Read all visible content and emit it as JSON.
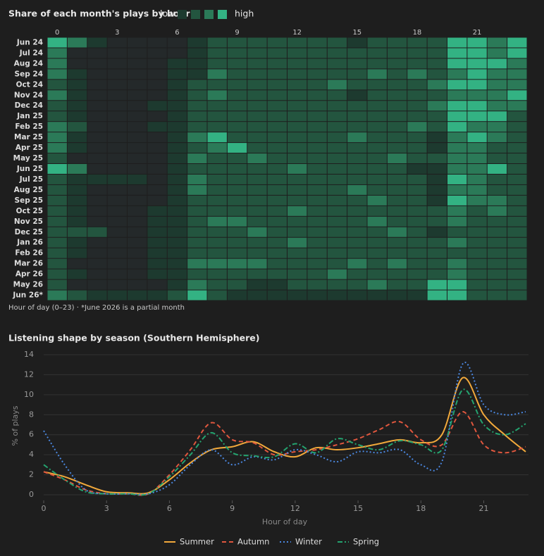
{
  "chart_data": [
    {
      "type": "heatmap",
      "title": "Share of each month's plays by hour",
      "legend_low": "low",
      "legend_high": "high",
      "note": "Hour of day (0–23) · *June 2026 is a partial month",
      "colors": [
        "#24292a",
        "#1d3a2f",
        "#23553f",
        "#2b7a58",
        "#33b283"
      ],
      "categories": [
        "Jun 24",
        "Jul 24",
        "Aug 24",
        "Sep 24",
        "Oct 24",
        "Nov 24",
        "Dec 24",
        "Jan 25",
        "Feb 25",
        "Mar 25",
        "Apr 25",
        "May 25",
        "Jun 25",
        "Jul 25",
        "Aug 25",
        "Sep 25",
        "Oct 25",
        "Nov 25",
        "Dec 25",
        "Jan 26",
        "Feb 26",
        "Mar 26",
        "Apr 26",
        "May 26",
        "Jun 26*"
      ],
      "x": [
        0,
        1,
        2,
        3,
        4,
        5,
        6,
        7,
        8,
        9,
        10,
        11,
        12,
        13,
        14,
        15,
        16,
        17,
        18,
        19,
        20,
        21,
        22,
        23
      ],
      "xlim": [
        0,
        23
      ],
      "xticks": [
        0,
        3,
        6,
        9,
        12,
        15,
        18,
        21
      ],
      "values": [
        [
          4,
          3,
          1,
          0,
          0,
          0,
          0,
          1,
          2,
          2,
          2,
          2,
          2,
          2,
          2,
          1,
          2,
          2,
          2,
          2,
          4,
          4,
          3,
          4
        ],
        [
          3,
          0,
          0,
          0,
          0,
          0,
          0,
          1,
          2,
          2,
          2,
          2,
          2,
          2,
          2,
          2,
          2,
          2,
          2,
          2,
          4,
          4,
          3,
          4
        ],
        [
          3,
          0,
          0,
          0,
          0,
          0,
          1,
          1,
          2,
          2,
          2,
          2,
          2,
          2,
          2,
          2,
          2,
          2,
          2,
          2,
          4,
          4,
          4,
          3
        ],
        [
          3,
          1,
          0,
          0,
          0,
          0,
          1,
          1,
          3,
          2,
          2,
          2,
          2,
          2,
          2,
          2,
          3,
          2,
          3,
          2,
          3,
          4,
          3,
          3
        ],
        [
          2,
          1,
          0,
          0,
          0,
          0,
          1,
          2,
          2,
          2,
          2,
          2,
          2,
          2,
          3,
          2,
          2,
          2,
          2,
          3,
          4,
          4,
          3,
          3
        ],
        [
          3,
          1,
          0,
          0,
          0,
          0,
          1,
          2,
          3,
          2,
          2,
          2,
          2,
          2,
          2,
          1,
          2,
          2,
          2,
          2,
          3,
          3,
          3,
          4
        ],
        [
          2,
          1,
          0,
          0,
          0,
          1,
          1,
          2,
          2,
          2,
          2,
          2,
          2,
          2,
          2,
          2,
          2,
          2,
          2,
          3,
          4,
          4,
          3,
          3
        ],
        [
          2,
          1,
          0,
          0,
          0,
          0,
          1,
          2,
          2,
          2,
          2,
          2,
          2,
          2,
          2,
          2,
          2,
          2,
          2,
          2,
          4,
          4,
          4,
          2
        ],
        [
          3,
          2,
          0,
          0,
          0,
          1,
          1,
          2,
          2,
          2,
          2,
          2,
          2,
          2,
          2,
          2,
          2,
          2,
          3,
          2,
          4,
          3,
          3,
          2
        ],
        [
          3,
          1,
          0,
          0,
          0,
          0,
          1,
          3,
          4,
          2,
          2,
          2,
          2,
          2,
          2,
          3,
          2,
          2,
          2,
          1,
          3,
          4,
          3,
          2
        ],
        [
          3,
          1,
          0,
          0,
          0,
          0,
          1,
          2,
          3,
          4,
          2,
          2,
          2,
          2,
          2,
          2,
          2,
          2,
          2,
          1,
          3,
          3,
          2,
          2
        ],
        [
          2,
          0,
          0,
          0,
          0,
          0,
          1,
          3,
          2,
          2,
          3,
          2,
          2,
          2,
          2,
          2,
          2,
          3,
          2,
          2,
          3,
          3,
          2,
          2
        ],
        [
          4,
          3,
          0,
          0,
          0,
          0,
          1,
          2,
          2,
          2,
          2,
          2,
          3,
          2,
          2,
          2,
          2,
          2,
          1,
          1,
          3,
          3,
          4,
          2
        ],
        [
          2,
          1,
          1,
          1,
          1,
          0,
          1,
          3,
          2,
          2,
          2,
          2,
          2,
          2,
          2,
          2,
          2,
          2,
          2,
          1,
          4,
          3,
          2,
          2
        ],
        [
          2,
          1,
          0,
          0,
          0,
          0,
          1,
          3,
          2,
          2,
          2,
          2,
          2,
          2,
          2,
          3,
          2,
          2,
          2,
          1,
          3,
          3,
          2,
          2
        ],
        [
          2,
          1,
          0,
          0,
          0,
          0,
          1,
          2,
          2,
          2,
          2,
          2,
          2,
          2,
          2,
          2,
          3,
          2,
          2,
          1,
          4,
          3,
          3,
          2
        ],
        [
          2,
          1,
          0,
          0,
          0,
          1,
          1,
          2,
          2,
          2,
          2,
          2,
          3,
          2,
          2,
          2,
          2,
          2,
          2,
          2,
          3,
          2,
          3,
          2
        ],
        [
          2,
          1,
          0,
          0,
          0,
          1,
          1,
          2,
          3,
          3,
          2,
          2,
          2,
          2,
          2,
          2,
          3,
          2,
          2,
          2,
          3,
          2,
          2,
          2
        ],
        [
          2,
          2,
          2,
          0,
          0,
          1,
          1,
          2,
          2,
          2,
          3,
          2,
          2,
          2,
          2,
          2,
          2,
          3,
          2,
          1,
          2,
          2,
          2,
          2
        ],
        [
          2,
          1,
          0,
          0,
          0,
          1,
          1,
          2,
          2,
          2,
          2,
          2,
          3,
          2,
          2,
          2,
          2,
          2,
          2,
          2,
          3,
          2,
          2,
          2
        ],
        [
          2,
          1,
          0,
          0,
          0,
          1,
          1,
          2,
          2,
          2,
          2,
          2,
          2,
          2,
          2,
          2,
          2,
          2,
          2,
          2,
          2,
          2,
          2,
          2
        ],
        [
          2,
          0,
          0,
          0,
          0,
          1,
          1,
          3,
          3,
          3,
          3,
          2,
          2,
          2,
          2,
          3,
          2,
          3,
          2,
          2,
          3,
          2,
          2,
          2
        ],
        [
          2,
          1,
          0,
          0,
          0,
          1,
          1,
          2,
          2,
          2,
          2,
          2,
          2,
          2,
          3,
          2,
          2,
          2,
          2,
          2,
          3,
          2,
          2,
          2
        ],
        [
          2,
          0,
          0,
          0,
          0,
          0,
          1,
          3,
          2,
          2,
          1,
          1,
          2,
          2,
          2,
          2,
          3,
          2,
          2,
          4,
          4,
          2,
          2,
          2
        ],
        [
          3,
          2,
          1,
          1,
          1,
          1,
          2,
          4,
          2,
          1,
          1,
          1,
          1,
          1,
          1,
          1,
          1,
          1,
          1,
          4,
          4,
          2,
          2,
          2
        ]
      ]
    },
    {
      "type": "line",
      "title": "Listening shape by season (Southern Hemisphere)",
      "xlabel": "Hour of day",
      "ylabel": "% of plays",
      "x": [
        0,
        1,
        2,
        3,
        4,
        5,
        6,
        7,
        8,
        9,
        10,
        11,
        12,
        13,
        14,
        15,
        16,
        17,
        18,
        19,
        20,
        21,
        22,
        23
      ],
      "xlim": [
        0,
        23
      ],
      "xticks": [
        0,
        3,
        6,
        9,
        12,
        15,
        18,
        21
      ],
      "ylim": [
        0,
        14
      ],
      "yticks": [
        0,
        2,
        4,
        6,
        8,
        10,
        12,
        14
      ],
      "grid": true,
      "series": [
        {
          "name": "Summer",
          "color": "#f2a93b",
          "dash": "solid",
          "values": [
            2.3,
            1.8,
            1.0,
            0.3,
            0.2,
            0.2,
            1.5,
            3.2,
            4.5,
            4.8,
            5.3,
            4.3,
            3.8,
            4.7,
            4.5,
            4.7,
            5.1,
            5.5,
            5.2,
            6.0,
            11.7,
            8.0,
            6.0,
            4.3
          ]
        },
        {
          "name": "Autumn",
          "color": "#e0573e",
          "dash": "dashed",
          "values": [
            2.3,
            1.5,
            0.5,
            0.1,
            0.1,
            0.1,
            2.0,
            4.5,
            7.2,
            5.5,
            5.2,
            4.0,
            4.3,
            4.5,
            5.0,
            5.6,
            6.5,
            7.3,
            5.5,
            5.0,
            8.3,
            5.0,
            4.2,
            4.8
          ]
        },
        {
          "name": "Winter",
          "color": "#4a87e0",
          "dash": "dotted",
          "values": [
            6.4,
            3.0,
            0.5,
            0.1,
            0.1,
            0.1,
            1.0,
            3.0,
            4.5,
            3.0,
            3.8,
            3.5,
            4.5,
            4.0,
            3.3,
            4.3,
            4.2,
            4.5,
            3.0,
            3.3,
            13.1,
            9.0,
            8.0,
            8.3
          ]
        },
        {
          "name": "Spring",
          "color": "#24a36f",
          "dash": "dashdot",
          "values": [
            3.0,
            1.5,
            0.3,
            0.1,
            0.1,
            0.1,
            1.8,
            4.0,
            6.2,
            4.2,
            3.9,
            3.8,
            5.1,
            4.2,
            5.6,
            5.0,
            4.5,
            5.4,
            5.0,
            4.5,
            10.5,
            7.0,
            6.0,
            7.1
          ]
        }
      ]
    }
  ]
}
